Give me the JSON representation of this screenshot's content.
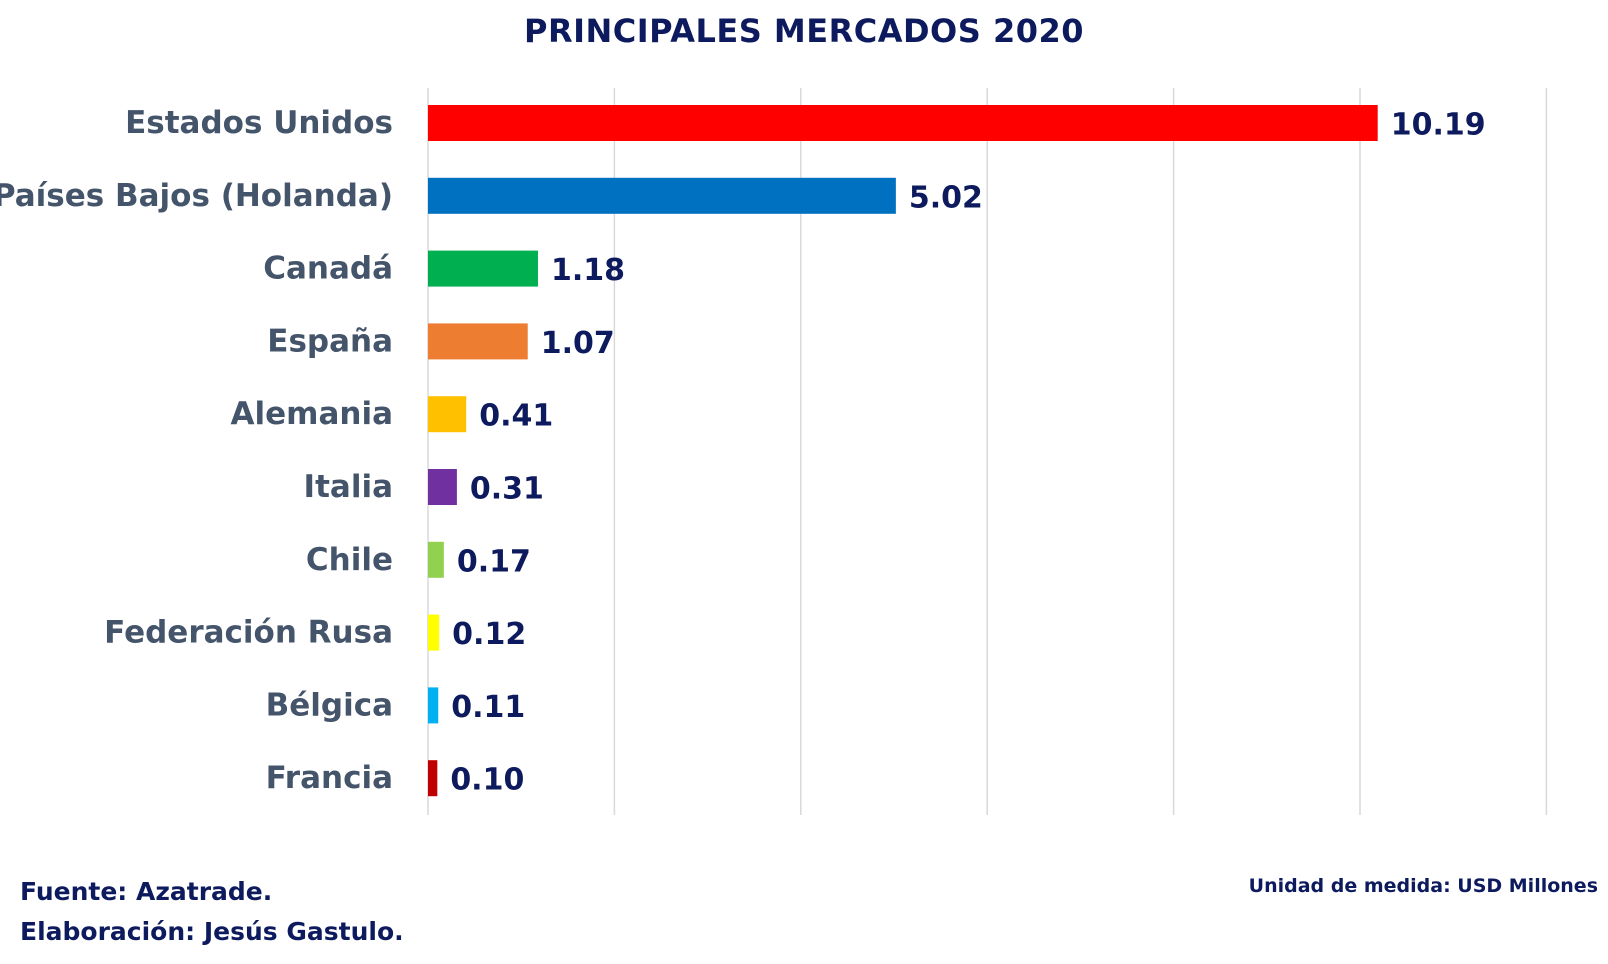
{
  "chart_data": {
    "type": "bar",
    "orientation": "horizontal",
    "title": "PRINCIPALES MERCADOS 2020",
    "categories": [
      "Estados Unidos",
      "Países Bajos (Holanda)",
      "Canadá",
      "España",
      "Alemania",
      "Italia",
      "Chile",
      "Federación Rusa",
      "Bélgica",
      "Francia"
    ],
    "values": [
      10.19,
      5.02,
      1.18,
      1.07,
      0.41,
      0.31,
      0.17,
      0.12,
      0.11,
      0.1
    ],
    "value_labels": [
      "10.19",
      "5.02",
      "1.18",
      "1.07",
      "0.41",
      "0.31",
      "0.17",
      "0.12",
      "0.11",
      "0.10"
    ],
    "colors": [
      "#ff0000",
      "#0070c0",
      "#00b050",
      "#ed7d31",
      "#ffc000",
      "#7030a0",
      "#92d050",
      "#ffff00",
      "#00b0f0",
      "#c00000"
    ],
    "xlim": [
      0,
      12
    ],
    "grid": true,
    "legend": "none"
  },
  "footer": {
    "source": "Fuente: Azatrade.",
    "author": "Elaboración: Jesús Gastulo.",
    "unit": "Unidad de medida: USD Millones"
  }
}
